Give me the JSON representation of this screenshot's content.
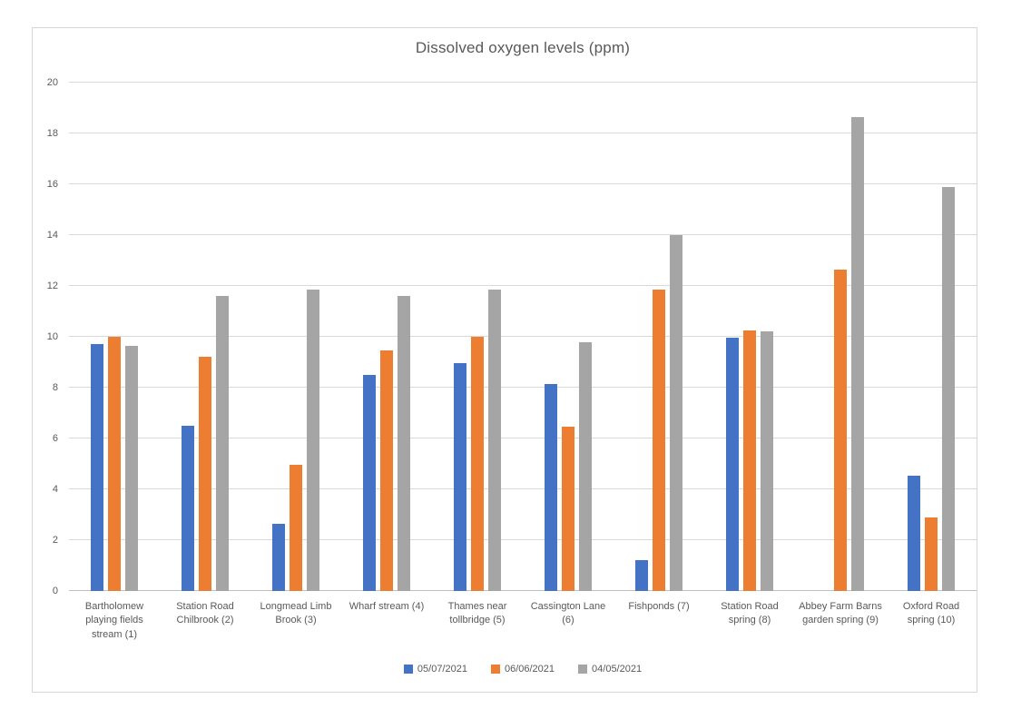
{
  "chart_data": {
    "type": "bar",
    "title": "Dissolved oxygen levels (ppm)",
    "xlabel": "",
    "ylabel": "",
    "ylim": [
      0,
      20
    ],
    "ytick_step": 2,
    "grid": true,
    "legend_position": "bottom",
    "categories": [
      "Bartholomew playing fields stream (1)",
      "Station Road Chilbrook (2)",
      "Longmead Limb Brook (3)",
      "Wharf stream (4)",
      "Thames near tollbridge (5)",
      "Cassington Lane (6)",
      "Fishponds (7)",
      "Station Road spring (8)",
      "Abbey Farm Barns garden spring (9)",
      "Oxford Road spring (10)"
    ],
    "series": [
      {
        "name": "05/07/2021",
        "color": "#4472C4",
        "values": [
          9.7,
          6.5,
          2.65,
          8.5,
          8.95,
          8.15,
          1.2,
          9.95,
          0,
          4.55
        ]
      },
      {
        "name": "06/06/2021",
        "color": "#ED7D31",
        "values": [
          10.0,
          9.2,
          4.95,
          9.45,
          10.0,
          6.45,
          11.85,
          10.25,
          12.65,
          2.9
        ]
      },
      {
        "name": "04/05/2021",
        "color": "#A5A5A5",
        "values": [
          9.65,
          11.6,
          11.85,
          11.6,
          11.85,
          9.8,
          14.0,
          10.2,
          18.65,
          15.9
        ]
      }
    ]
  }
}
